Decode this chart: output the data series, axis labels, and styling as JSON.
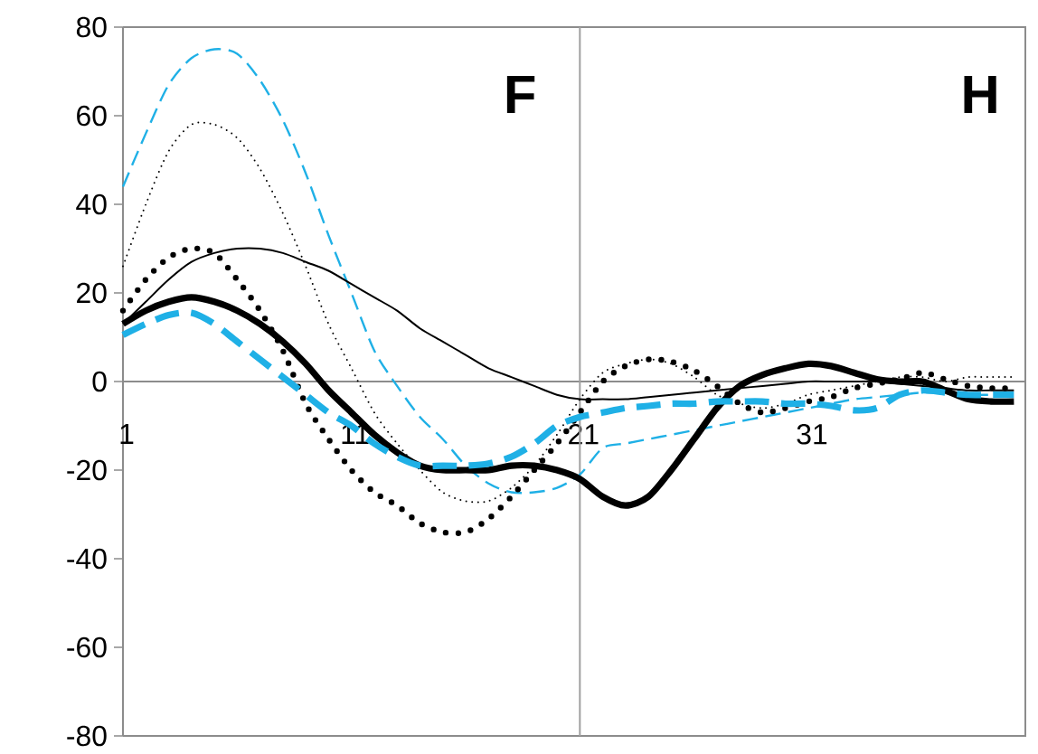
{
  "chart_data": {
    "type": "line",
    "x": [
      1,
      2,
      3,
      4,
      5,
      6,
      7,
      8,
      9,
      10,
      11,
      12,
      13,
      14,
      15,
      16,
      17,
      18,
      19,
      20,
      21,
      22,
      23,
      24,
      25,
      26,
      27,
      28,
      29,
      30,
      31,
      32,
      33,
      34,
      35,
      36,
      37,
      38,
      39,
      40
    ],
    "xlim": [
      1,
      40.5
    ],
    "xticks": [
      1,
      11,
      21,
      31
    ],
    "ylim": [
      -80,
      80
    ],
    "yticks": [
      -80,
      -60,
      -40,
      -20,
      0,
      20,
      40,
      60,
      80
    ],
    "grid": false,
    "ref_lines": [
      {
        "axis": "x",
        "value": 21,
        "color": "#a0a0a0"
      }
    ],
    "annotations": [
      "F",
      "H"
    ],
    "series": [
      {
        "color": "#1fb0e6",
        "line_style": "dashed",
        "values": [
          44,
          56,
          67,
          73,
          75,
          74,
          68,
          59,
          47,
          33,
          20,
          7,
          -1,
          -8,
          -13,
          -19,
          -23,
          -25,
          -25,
          -24,
          -21,
          -15,
          -14,
          -13,
          -12,
          -11,
          -10,
          -9,
          -8,
          -7,
          -6,
          -5,
          -4,
          -3.5,
          -3,
          -2.5,
          -2.5,
          -3,
          -3,
          -3
        ]
      },
      {
        "color": "#000000",
        "line_style": "dotted",
        "values": [
          26,
          40,
          52,
          58,
          58,
          55,
          48,
          38,
          26,
          13,
          3,
          -7,
          -14,
          -20,
          -25,
          -27,
          -27,
          -24,
          -19,
          -12,
          -4,
          2,
          4,
          5,
          4,
          1,
          -3,
          -5,
          -6,
          -5,
          -3,
          -2,
          -1,
          0,
          1,
          1,
          0,
          1,
          1,
          1
        ]
      },
      {
        "color": "#000000",
        "line_style": "dotted",
        "values": [
          16,
          23,
          28,
          30,
          29,
          23,
          16,
          7,
          -5,
          -13,
          -20,
          -25,
          -28,
          -32,
          -34,
          -34,
          -31,
          -26,
          -20,
          -14,
          -7,
          0,
          3.5,
          5,
          4.5,
          2.5,
          -1,
          -5,
          -7,
          -6,
          -4.5,
          -3.5,
          -1.5,
          -0.5,
          0.5,
          2,
          0.5,
          -1,
          -1.5,
          -1.5
        ]
      },
      {
        "color": "#000000",
        "line_style": "solid",
        "values": [
          13,
          18,
          23,
          27,
          29,
          30,
          30,
          29,
          27,
          25,
          22,
          19,
          16,
          12,
          9,
          6,
          3,
          1,
          -1,
          -3,
          -4,
          -4,
          -4,
          -3.5,
          -3,
          -2.5,
          -2,
          -1.5,
          -1,
          -0.5,
          0,
          0,
          0,
          0,
          -0.5,
          -1,
          -1.5,
          -2,
          -2,
          -2
        ]
      },
      {
        "color": "#000000",
        "line_style": "solid",
        "values": [
          13,
          16,
          18,
          19,
          18,
          16,
          13,
          9,
          4,
          -2,
          -7,
          -12,
          -16,
          -19,
          -20,
          -20,
          -20,
          -19,
          -19,
          -20,
          -22,
          -26,
          -28,
          -26,
          -20,
          -13,
          -6,
          -1,
          1.5,
          3,
          4,
          3.5,
          2,
          0.5,
          0,
          0,
          -2,
          -4,
          -4.5,
          -4.5
        ]
      },
      {
        "color": "#1fb0e6",
        "line_style": "dashed",
        "values": [
          10.5,
          13,
          15,
          15.5,
          13,
          9,
          5,
          1,
          -3,
          -7,
          -10,
          -14,
          -17,
          -19,
          -19,
          -19,
          -18.5,
          -17,
          -14,
          -10,
          -8,
          -7,
          -6,
          -5.5,
          -5,
          -5,
          -4.5,
          -4.5,
          -4.5,
          -5,
          -5,
          -5.5,
          -6.5,
          -6,
          -3,
          -2,
          -2.5,
          -3,
          -3,
          -3
        ]
      }
    ]
  }
}
